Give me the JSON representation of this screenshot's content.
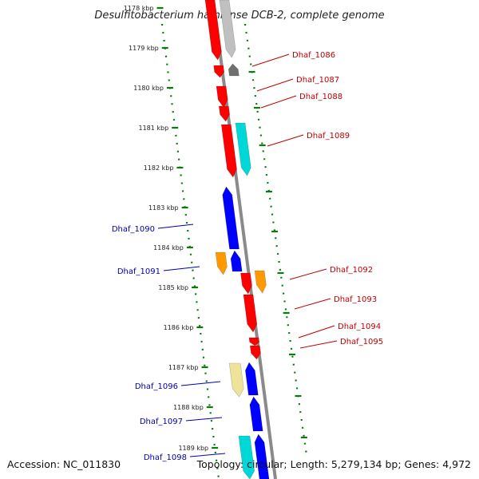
{
  "title": "Desulfitobacterium hafniense DCB-2, complete genome",
  "footer": {
    "accession": "Accession: NC_011830",
    "topology": "Topology: circular; Length: 5,279,134 bp; Genes: 4,972"
  },
  "ticks": [
    "1178 kbp",
    "1179 kbp",
    "1180 kbp",
    "1181 kbp",
    "1182 kbp",
    "1183 kbp",
    "1184 kbp",
    "1185 kbp",
    "1186 kbp",
    "1187 kbp",
    "1188 kbp",
    "1189 kbp"
  ],
  "colors": {
    "red": "#ff0000",
    "blue": "#0000ff",
    "cyan": "#00d8d8",
    "orange": "#ff9900",
    "gray": "#c0c0c0",
    "darkgray": "#707070",
    "khaki": "#efe39a",
    "tick_green": "#0a7a0a",
    "backbone": "#8a8a8a",
    "label_right": "#c00000",
    "label_left": "#0000b0"
  },
  "genes_right": [
    {
      "label": "Dhaf_1086"
    },
    {
      "label": "Dhaf_1087"
    },
    {
      "label": "Dhaf_1088"
    },
    {
      "label": "Dhaf_1089"
    },
    {
      "label": "Dhaf_1092"
    },
    {
      "label": "Dhaf_1093"
    },
    {
      "label": "Dhaf_1094"
    },
    {
      "label": "Dhaf_1095"
    }
  ],
  "genes_left": [
    {
      "label": "Dhaf_1090"
    },
    {
      "label": "Dhaf_1091"
    },
    {
      "label": "Dhaf_1096"
    },
    {
      "label": "Dhaf_1097"
    },
    {
      "label": "Dhaf_1098"
    }
  ]
}
